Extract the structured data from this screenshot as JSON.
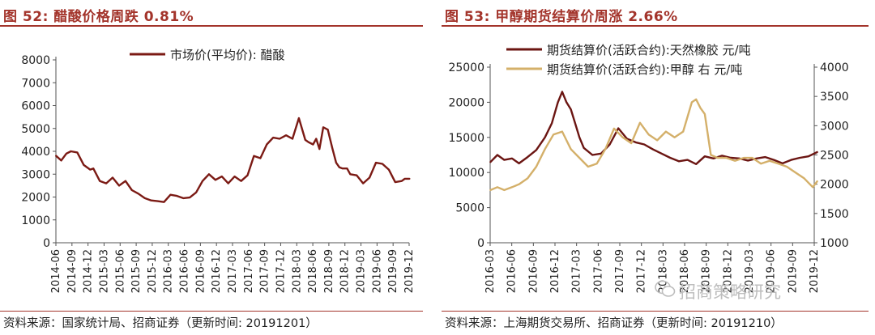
{
  "left": {
    "title": "图 52:  醋酸价格周跌 0.81%",
    "source": "资料来源：国家统计局、招商证券（更新时间: 20191201）"
  },
  "right": {
    "title": "图 53:  甲醇期货结算价周涨 2.66%",
    "source": "资料来源：上海期货交易所、招商证券（更新时间: 20191210）"
  },
  "watermark": "招商策略研究",
  "chart_data": [
    {
      "type": "line",
      "title": "",
      "xlabel": "",
      "ylabel": "",
      "ylim": [
        0,
        8000
      ],
      "yticks": [
        "0",
        "1000",
        "2000",
        "3000",
        "4000",
        "5000",
        "6000",
        "7000",
        "8000"
      ],
      "xticks": [
        "2014-06",
        "2014-09",
        "2014-12",
        "2015-03",
        "2015-06",
        "2015-09",
        "2015-12",
        "2016-03",
        "2016-06",
        "2016-09",
        "2016-12",
        "2017-03",
        "2017-06",
        "2017-09",
        "2017-12",
        "2018-03",
        "2018-06",
        "2018-09",
        "2018-12",
        "2019-03",
        "2019-06",
        "2019-09",
        "2019-12"
      ],
      "legend_position": "top-center",
      "grid": false,
      "series": [
        {
          "name": "市场价(平均价):  醋酸",
          "color": "#7b1a14",
          "x": [
            2014.42,
            2014.5,
            2014.58,
            2014.65,
            2014.75,
            2014.85,
            2014.95,
            2015.0,
            2015.1,
            2015.2,
            2015.3,
            2015.4,
            2015.5,
            2015.6,
            2015.7,
            2015.8,
            2015.9,
            2016.0,
            2016.1,
            2016.2,
            2016.3,
            2016.4,
            2016.5,
            2016.6,
            2016.7,
            2016.8,
            2016.9,
            2017.0,
            2017.1,
            2017.2,
            2017.3,
            2017.4,
            2017.5,
            2017.6,
            2017.7,
            2017.8,
            2017.9,
            2018.0,
            2018.1,
            2018.2,
            2018.3,
            2018.35,
            2018.42,
            2018.47,
            2018.52,
            2018.58,
            2018.65,
            2018.72,
            2018.78,
            2018.83,
            2018.88,
            2018.95,
            2019.0,
            2019.1,
            2019.2,
            2019.3,
            2019.4,
            2019.5,
            2019.6,
            2019.7,
            2019.8,
            2019.85,
            2019.92
          ],
          "values": [
            3800,
            3600,
            3900,
            4000,
            3950,
            3400,
            3200,
            3250,
            2700,
            2600,
            2850,
            2500,
            2700,
            2300,
            2150,
            1950,
            1850,
            1820,
            1780,
            2100,
            2050,
            1950,
            1980,
            2200,
            2700,
            3000,
            2750,
            2900,
            2600,
            2900,
            2700,
            2950,
            3800,
            3700,
            4300,
            4600,
            4550,
            4700,
            4550,
            5450,
            4500,
            4400,
            4300,
            4550,
            4100,
            5050,
            4950,
            4150,
            3500,
            3300,
            3250,
            3250,
            3000,
            2950,
            2600,
            2850,
            3500,
            3450,
            3200,
            2650,
            2700,
            2800,
            2800
          ]
        }
      ]
    },
    {
      "type": "line",
      "title": "",
      "xlabel": "",
      "ylabel": "",
      "ylim": [
        0,
        25000
      ],
      "y2lim": [
        1000,
        4000
      ],
      "yticks": [
        "0",
        "5000",
        "10000",
        "15000",
        "20000",
        "25000"
      ],
      "y2ticks": [
        "1000",
        "1500",
        "2000",
        "2500",
        "3000",
        "3500",
        "4000"
      ],
      "xticks": [
        "2016-03",
        "2016-06",
        "2016-09",
        "2016-12",
        "2017-03",
        "2017-06",
        "2017-09",
        "2017-12",
        "2018-03",
        "2018-06",
        "2018-09",
        "2018-12",
        "2019-03",
        "2019-06",
        "2019-09",
        "2019-12"
      ],
      "legend_position": "top-left",
      "grid": false,
      "series": [
        {
          "name": "期货结算价(活跃合约):天然橡胶  元/吨",
          "axis": "left",
          "color": "#6b1512",
          "x": [
            2016.17,
            2016.25,
            2016.33,
            2016.42,
            2016.5,
            2016.6,
            2016.7,
            2016.8,
            2016.88,
            2016.95,
            2017.0,
            2017.05,
            2017.1,
            2017.15,
            2017.2,
            2017.25,
            2017.35,
            2017.45,
            2017.55,
            2017.65,
            2017.75,
            2017.85,
            2017.95,
            2018.05,
            2018.15,
            2018.25,
            2018.35,
            2018.45,
            2018.55,
            2018.65,
            2018.75,
            2018.85,
            2018.95,
            2019.05,
            2019.15,
            2019.25,
            2019.35,
            2019.45,
            2019.55,
            2019.65,
            2019.75,
            2019.85,
            2019.95
          ],
          "values": [
            11500,
            12500,
            11800,
            12000,
            11300,
            12200,
            13200,
            15000,
            17000,
            20000,
            21500,
            20000,
            19000,
            17000,
            15000,
            13500,
            12500,
            12700,
            14000,
            16300,
            14800,
            14300,
            14000,
            13300,
            12700,
            12100,
            11600,
            11800,
            11200,
            12300,
            12000,
            12400,
            12100,
            12000,
            11700,
            12000,
            12200,
            11800,
            11300,
            11800,
            12100,
            12300,
            12900
          ]
        },
        {
          "name": "期货结算价(活跃合约):甲醇  右  元/吨",
          "axis": "right",
          "color": "#d4b06a",
          "x": [
            2016.17,
            2016.25,
            2016.33,
            2016.42,
            2016.5,
            2016.6,
            2016.7,
            2016.8,
            2016.9,
            2017.0,
            2017.05,
            2017.1,
            2017.2,
            2017.3,
            2017.4,
            2017.5,
            2017.6,
            2017.7,
            2017.8,
            2017.9,
            2018.0,
            2018.1,
            2018.2,
            2018.3,
            2018.4,
            2018.5,
            2018.55,
            2018.6,
            2018.65,
            2018.72,
            2018.8,
            2018.9,
            2019.0,
            2019.1,
            2019.2,
            2019.3,
            2019.4,
            2019.5,
            2019.6,
            2019.7,
            2019.8,
            2019.9,
            2019.95
          ],
          "values": [
            1900,
            1950,
            1900,
            1950,
            2000,
            2100,
            2300,
            2600,
            2850,
            2900,
            2750,
            2600,
            2450,
            2300,
            2350,
            2600,
            2950,
            2800,
            2700,
            3050,
            2850,
            2750,
            2900,
            2800,
            2900,
            3400,
            3450,
            3300,
            3200,
            2500,
            2450,
            2450,
            2400,
            2450,
            2450,
            2350,
            2400,
            2350,
            2300,
            2200,
            2100,
            1950,
            2050
          ]
        }
      ]
    }
  ]
}
